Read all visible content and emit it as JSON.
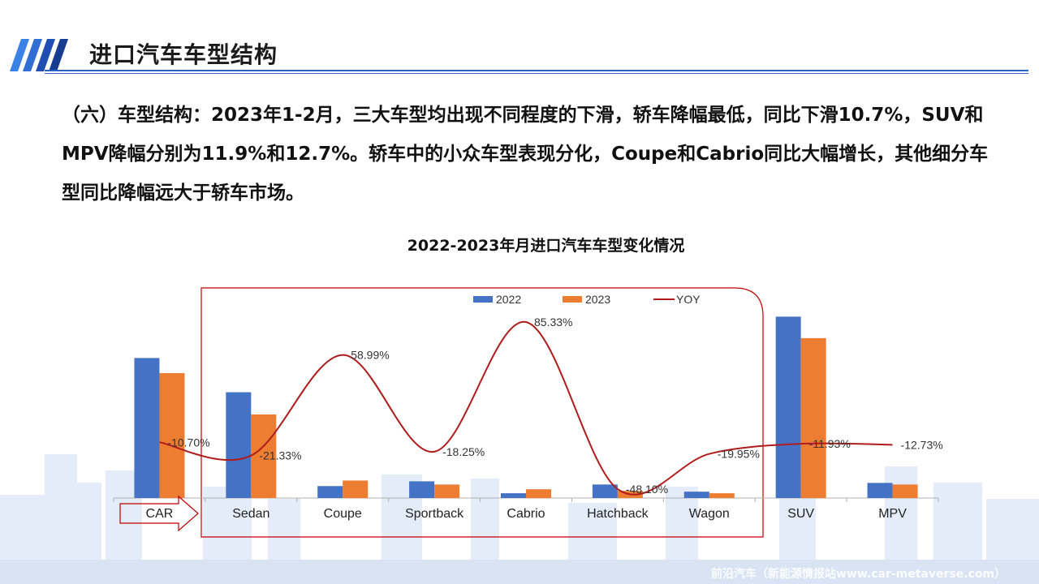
{
  "page": {
    "title": "进口汽车车型结构",
    "paragraph": "（六）车型结构：2023年1-2月，三大车型均出现不同程度的下滑，轿车降幅最低，同比下滑10.7%，SUV和MPV降幅分别为11.9%和12.7%。轿车中的小众车型表现分化，Coupe和Cabrio同比大幅增长，其他细分车型同比降幅远大于轿车市场。",
    "watermark": "前沿汽车（新能源情报站www.car-metaverse.com）"
  },
  "colors": {
    "accent_blue": "#2c63c9",
    "bar_2022": "#4472c4",
    "bar_2023": "#ed7d31",
    "yoy_line": "#b01c1c",
    "highlight_box": "#c00000",
    "background_city": "#dfe9f6"
  },
  "chart_data": {
    "type": "bar",
    "title": "2022-2023年月进口汽车车型变化情况",
    "categories": [
      "CAR",
      "Sedan",
      "Coupe",
      "Sportback",
      "Cabrio",
      "Hatchback",
      "Wagon",
      "SUV",
      "MPV"
    ],
    "series": [
      {
        "name": "2022",
        "type": "bar",
        "values": [
          176,
          133,
          15,
          21,
          6,
          17,
          8,
          228,
          19
        ]
      },
      {
        "name": "2023",
        "type": "bar",
        "values": [
          157,
          105,
          22,
          17,
          11,
          9,
          6,
          201,
          17
        ]
      },
      {
        "name": "YOY",
        "type": "line",
        "values": [
          -10.7,
          -21.33,
          58.99,
          -18.25,
          85.33,
          -48.1,
          -19.95,
          -11.93,
          -12.73
        ],
        "labels": [
          "-10.70%",
          "-21.33%",
          "58.99%",
          "-18.25%",
          "85.33%",
          "-48.10%",
          "-19.95%",
          "-11.93%",
          "-12.73%"
        ]
      }
    ],
    "legend": [
      "2022",
      "2023",
      "YOY"
    ],
    "legend_position": "top",
    "grid": false,
    "ylim_bars": [
      0,
      260
    ],
    "ylim_yoy": [
      -60,
      95
    ],
    "highlighted_categories": [
      "Sedan",
      "Coupe",
      "Sportback",
      "Cabrio",
      "Hatchback",
      "Wagon"
    ]
  }
}
